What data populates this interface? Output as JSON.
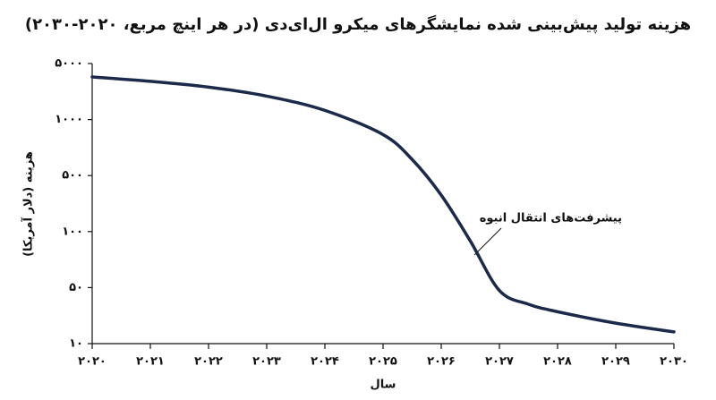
{
  "chart_data": {
    "type": "line",
    "title": "هزینه تولید پیش‌بینی شده نمایشگرهای میکرو ال‌ای‌دی (در هر اینچ مربع، ۲۰۲۰-۲۰۳۰)",
    "x_label": "سال",
    "y_label": "هزینه (دلار آمریکا)",
    "annotation": "پیشرفت‌های انتقال انبوه",
    "x": [
      2020,
      2021,
      2022,
      2023,
      2024,
      2025,
      2025.5,
      2026,
      2026.5,
      2027,
      2027.5,
      2028,
      2029,
      2030
    ],
    "series": [
      {
        "color": "#1b2a4a",
        "values": [
          3400,
          3000,
          2540,
          1960,
          1300,
          830,
          610,
          285,
          89,
          46,
          31,
          25,
          18,
          14
        ]
      }
    ],
    "xlim": [
      2020,
      2030
    ],
    "xticks": [
      {
        "value": 2020,
        "label": "۲۰۲۰"
      },
      {
        "value": 2021,
        "label": "۲۰۲۱"
      },
      {
        "value": 2022,
        "label": "۲۰۲۲"
      },
      {
        "value": 2023,
        "label": "۲۰۲۳"
      },
      {
        "value": 2024,
        "label": "۲۰۲۴"
      },
      {
        "value": 2025,
        "label": "۲۰۲۵"
      },
      {
        "value": 2026,
        "label": "۲۰۲۶"
      },
      {
        "value": 2027,
        "label": "۲۰۲۷"
      },
      {
        "value": 2028,
        "label": "۲۰۲۸"
      },
      {
        "value": 2029,
        "label": "۲۰۲۹"
      },
      {
        "value": 2030,
        "label": "۲۰۳۰"
      }
    ],
    "ylim": [
      10,
      5000
    ],
    "yticks": [
      {
        "value": 10,
        "label": "۱۰"
      },
      {
        "value": 50,
        "label": "۵۰"
      },
      {
        "value": 100,
        "label": "۱۰۰"
      },
      {
        "value": 500,
        "label": "۵۰۰"
      },
      {
        "value": 1000,
        "label": "۱۰۰۰"
      },
      {
        "value": 5000,
        "label": "۵۰۰۰"
      }
    ]
  }
}
